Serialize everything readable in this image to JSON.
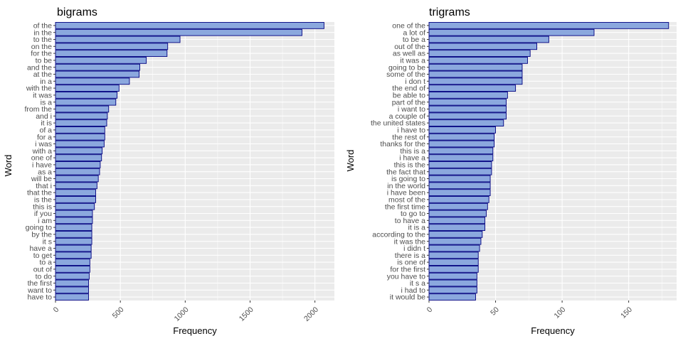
{
  "chart_data": [
    {
      "type": "bar",
      "orientation": "horizontal",
      "title": "bigrams",
      "xlabel": "Frequency",
      "ylabel": "Word",
      "xlim": [
        0,
        2150
      ],
      "xticks": [
        0,
        500,
        1000,
        1500,
        2000
      ],
      "xtick_labels": [
        "0",
        "500",
        "1000",
        "1500",
        "2000"
      ],
      "grid": true,
      "categories": [
        "of the",
        "in the",
        "to the",
        "on the",
        "for the",
        "to be",
        "and the",
        "at the",
        "in a",
        "with the",
        "it was",
        "is a",
        "from the",
        "and i",
        "it is",
        "of a",
        "for a",
        "i was",
        "with a",
        "one of",
        "i have",
        "as a",
        "will be",
        "that i",
        "that the",
        "is the",
        "this is",
        "if you",
        "i am",
        "going to",
        "by the",
        "it s",
        "have a",
        "to get",
        "to a",
        "out of",
        "to do",
        "the first",
        "want to",
        "have to"
      ],
      "values": [
        2070,
        1900,
        960,
        865,
        860,
        700,
        650,
        645,
        570,
        490,
        475,
        465,
        410,
        400,
        395,
        380,
        380,
        375,
        360,
        355,
        345,
        340,
        330,
        320,
        310,
        310,
        300,
        285,
        285,
        280,
        280,
        280,
        275,
        275,
        265,
        265,
        260,
        255,
        255,
        255
      ],
      "bar_fill": "#8ba8de",
      "bar_outline": "#000080",
      "panel_bg": "#ebebeb"
    },
    {
      "type": "bar",
      "orientation": "horizontal",
      "title": "trigrams",
      "xlabel": "Frequency",
      "ylabel": "Word",
      "xlim": [
        0,
        186
      ],
      "xticks": [
        0,
        50,
        100,
        150
      ],
      "xtick_labels": [
        "0",
        "50",
        "100",
        "150"
      ],
      "grid": true,
      "categories": [
        "one of the",
        "a lot of",
        "to be a",
        "out of the",
        "as well as",
        "it was a",
        "going to be",
        "some of the",
        "i don t",
        "the end of",
        "be able to",
        "part of the",
        "i want to",
        "a couple of",
        "the united states",
        "i have to",
        "the rest of",
        "thanks for the",
        "this is a",
        "i have a",
        "this is the",
        "the fact that",
        "is going to",
        "in the world",
        "i have been",
        "most of the",
        "the first time",
        "to go to",
        "to have a",
        "it is a",
        "according to the",
        "it was the",
        "i didn t",
        "there is a",
        "is one of",
        "for the first",
        "you have to",
        "it s a",
        "i had to",
        "it would be"
      ],
      "values": [
        180,
        124,
        90,
        81,
        76,
        74,
        70,
        70,
        70,
        65,
        59,
        58,
        58,
        58,
        56,
        50,
        49,
        49,
        48,
        48,
        47,
        47,
        46,
        46,
        46,
        45,
        44,
        43,
        42,
        42,
        40,
        39,
        38,
        37,
        37,
        37,
        36,
        36,
        36,
        35
      ],
      "bar_fill": "#8ba8de",
      "bar_outline": "#000080",
      "panel_bg": "#ebebeb"
    }
  ]
}
